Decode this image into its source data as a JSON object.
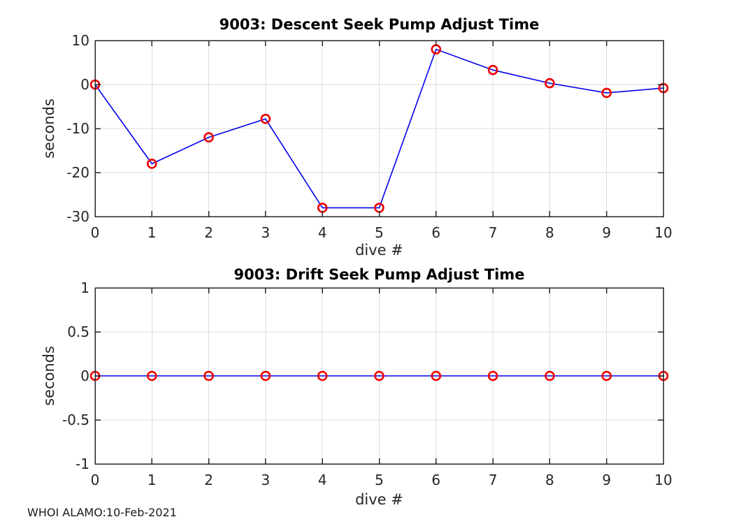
{
  "figure": {
    "footer": "WHOI ALAMO:10-Feb-2021",
    "background": "#ffffff"
  },
  "colors": {
    "grid": "#dcdcdc",
    "axis": "#262626",
    "tick_text": "#262626",
    "label_text": "#262626",
    "title_text": "#000000"
  },
  "chart_data": [
    {
      "type": "line",
      "title": "9003: Descent Seek Pump Adjust Time",
      "xlabel": "dive #",
      "ylabel": "seconds",
      "x": [
        0,
        1,
        2,
        3,
        4,
        5,
        6,
        7,
        8,
        9,
        10
      ],
      "y": [
        0,
        -18,
        -12,
        -7.8,
        -28,
        -28,
        8,
        3.3,
        0.3,
        -1.9,
        -0.8
      ],
      "xlim": [
        0,
        10
      ],
      "ylim": [
        -30,
        10
      ],
      "xticks": [
        0,
        1,
        2,
        3,
        4,
        5,
        6,
        7,
        8,
        9,
        10
      ],
      "xtick_labels": [
        "0",
        "1",
        "2",
        "3",
        "4",
        "5",
        "6",
        "7",
        "8",
        "9",
        "10"
      ],
      "yticks": [
        -30,
        -20,
        -10,
        0,
        10
      ],
      "ytick_labels": [
        "-30",
        "-20",
        "-10",
        "0",
        "10"
      ],
      "grid": true,
      "legend": null,
      "line_color": "#0000ee",
      "marker": "circle",
      "marker_color": "#ee0000"
    },
    {
      "type": "line",
      "title": "9003: Drift Seek Pump Adjust Time",
      "xlabel": "dive #",
      "ylabel": "seconds",
      "x": [
        0,
        1,
        2,
        3,
        4,
        5,
        6,
        7,
        8,
        9,
        10
      ],
      "y": [
        0,
        0,
        0,
        0,
        0,
        0,
        0,
        0,
        0,
        0,
        0
      ],
      "xlim": [
        0,
        10
      ],
      "ylim": [
        -1,
        1
      ],
      "xticks": [
        0,
        1,
        2,
        3,
        4,
        5,
        6,
        7,
        8,
        9,
        10
      ],
      "xtick_labels": [
        "0",
        "1",
        "2",
        "3",
        "4",
        "5",
        "6",
        "7",
        "8",
        "9",
        "10"
      ],
      "yticks": [
        -1,
        -0.5,
        0,
        0.5,
        1
      ],
      "ytick_labels": [
        "-1",
        "-0.5",
        "0",
        "0.5",
        "1"
      ],
      "grid": true,
      "legend": null,
      "line_color": "#0000ee",
      "marker": "circle",
      "marker_color": "#ee0000"
    }
  ]
}
